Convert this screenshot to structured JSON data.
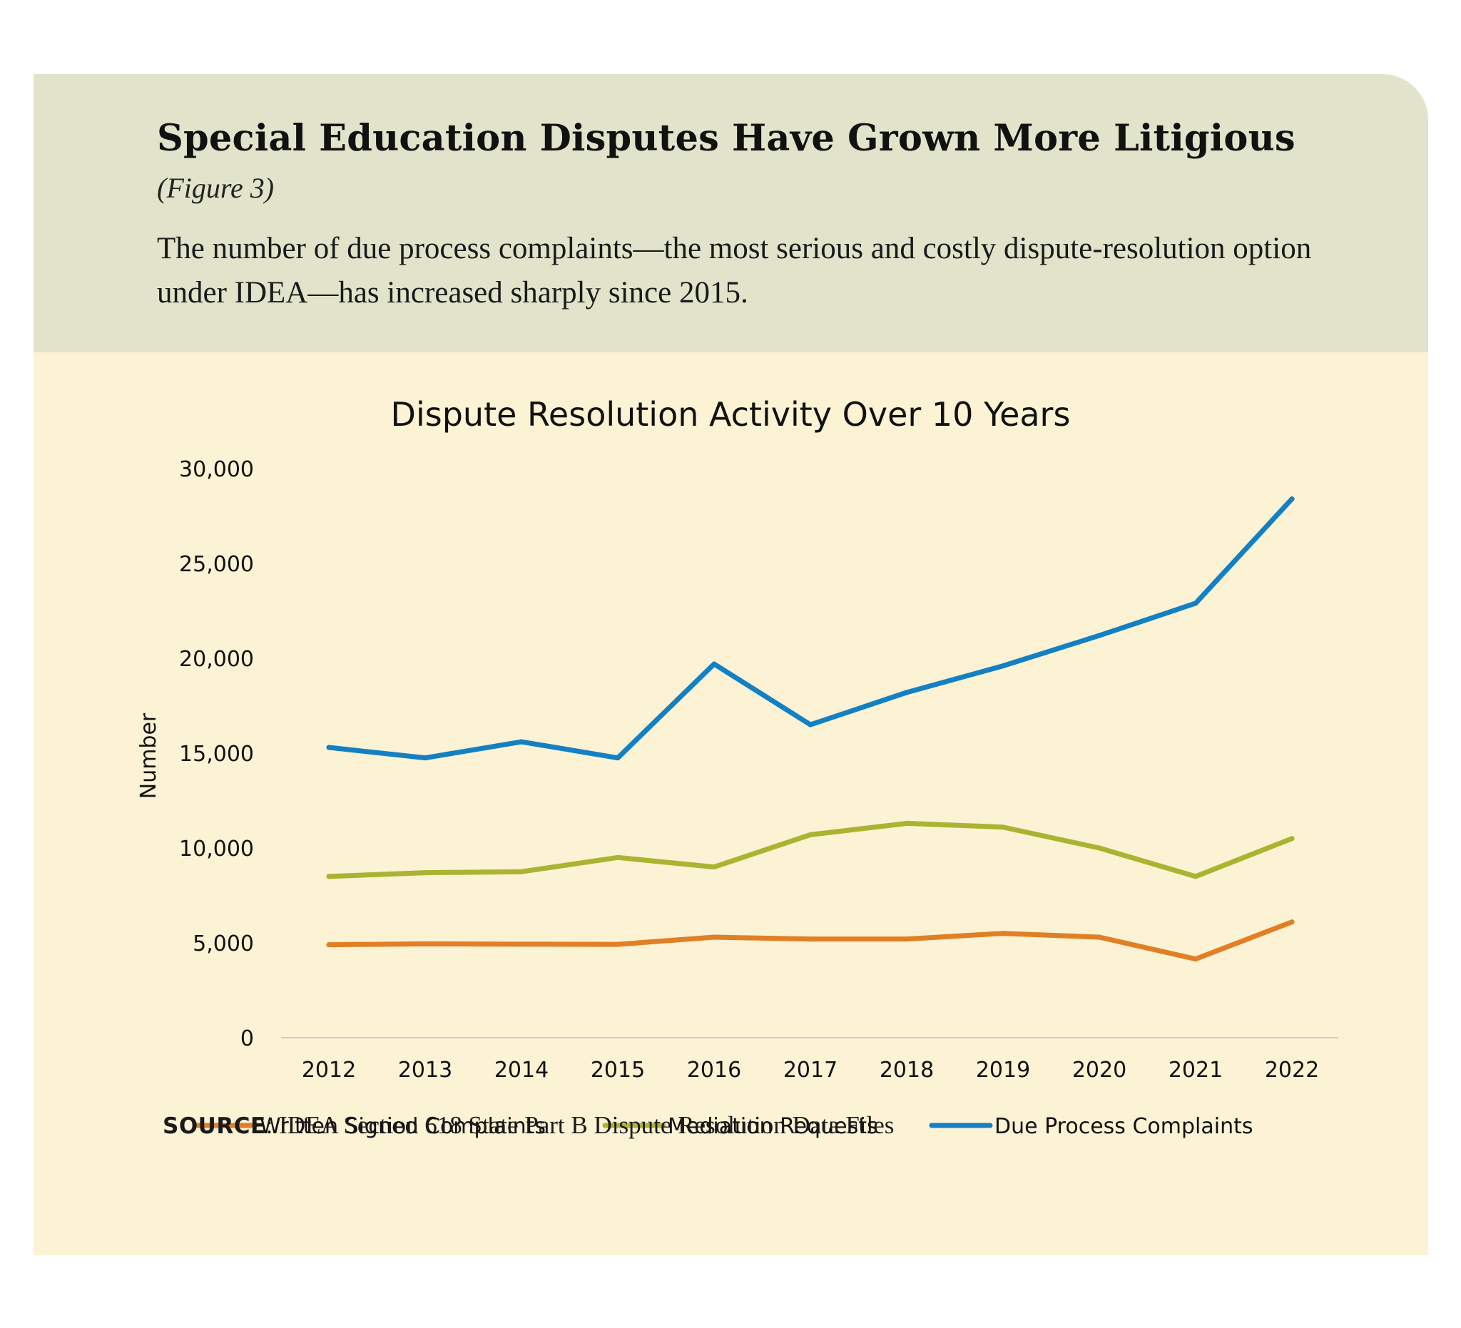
{
  "figure": {
    "title": "Special Education Disputes Have Grown More Litigious",
    "subtitle": "(Figure 3)",
    "lede": "The number of due process complaints—the most serious and costly dispute-resolution option under IDEA—has increased sharply since 2015.",
    "source_label": "SOURCE",
    "source_text": ": IDEA Section 618 State Part B Dispute Resolution Data Files"
  },
  "colors": {
    "header_bg": "#e1e4ca",
    "body_bg": "#fcf2d4",
    "written": "#e07f25",
    "mediation": "#aab431",
    "due_process": "#1380c3"
  },
  "chart_data": {
    "type": "line",
    "title": "Dispute Resolution Activity Over 10 Years",
    "xlabel": "",
    "ylabel": "Number",
    "x": [
      2012,
      2013,
      2014,
      2015,
      2016,
      2017,
      2018,
      2019,
      2020,
      2021,
      2022
    ],
    "x_tick_labels": [
      "2012",
      "2013",
      "2014",
      "2015",
      "2016",
      "2017",
      "2018",
      "2019",
      "2020",
      "2021",
      "2022"
    ],
    "ylim": [
      0,
      30000
    ],
    "y_ticks": [
      0,
      5000,
      10000,
      15000,
      20000,
      25000,
      30000
    ],
    "y_tick_labels": [
      "0",
      "5,000",
      "10,000",
      "15,000",
      "20,000",
      "25,000",
      "30,000"
    ],
    "grid": false,
    "legend_position": "bottom",
    "series": [
      {
        "name": "Written Signed Complaints",
        "color": "#e07f25",
        "values": [
          4900,
          4950,
          4930,
          4920,
          5300,
          5200,
          5200,
          5500,
          5300,
          4150,
          6100
        ]
      },
      {
        "name": "Mediation Requests",
        "color": "#aab431",
        "values": [
          8500,
          8700,
          8750,
          9500,
          9000,
          10700,
          11300,
          11100,
          10000,
          8500,
          10500
        ]
      },
      {
        "name": "Due Process Complaints",
        "color": "#1380c3",
        "values": [
          15300,
          14750,
          15600,
          14750,
          19700,
          16500,
          18200,
          19600,
          21200,
          22900,
          28400
        ]
      }
    ]
  }
}
